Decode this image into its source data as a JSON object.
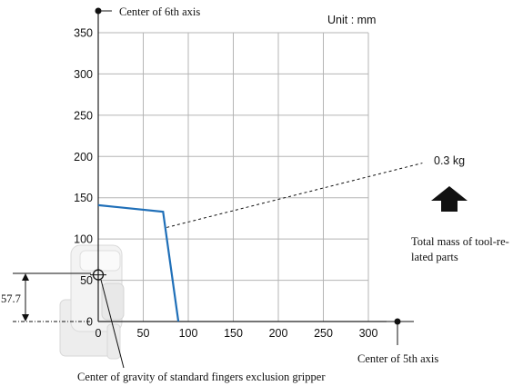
{
  "unit_label": "Unit : mm",
  "annotations": {
    "center_6th_axis": "Center of 6th axis",
    "center_5th_axis": "Center of 5th axis",
    "cog_label": "Center of gravity of standard fingers exclusion gripper",
    "mass_label": "0.3 kg",
    "total_mass_line1": "Total mass of tool-re-",
    "total_mass_line2": "lated parts",
    "dimension_label": "57.7"
  },
  "colors": {
    "curve": "#1f6fb8",
    "grid": "#b5b5b5",
    "axis": "#222222",
    "text": "#111111"
  },
  "chart_data": {
    "type": "line",
    "xlim": [
      0,
      300
    ],
    "ylim": [
      0,
      350
    ],
    "x_ticks": [
      0,
      50,
      100,
      150,
      200,
      250,
      300
    ],
    "y_ticks": [
      0,
      50,
      100,
      150,
      200,
      250,
      300,
      350
    ],
    "x_tick_labels": [
      "0",
      "50",
      "100",
      "150",
      "200",
      "250",
      "300"
    ],
    "y_tick_labels": [
      "0",
      "50",
      "100",
      "150",
      "200",
      "250",
      "300",
      "350"
    ],
    "grid": true,
    "series": [
      {
        "name": "0.3 kg",
        "points": [
          [
            0,
            141
          ],
          [
            72,
            133
          ],
          [
            89,
            0
          ]
        ]
      }
    ],
    "leader": {
      "from": [
        76,
        114
      ],
      "to": [
        360,
        192
      ]
    },
    "cog_point": [
      0,
      57.7
    ]
  }
}
